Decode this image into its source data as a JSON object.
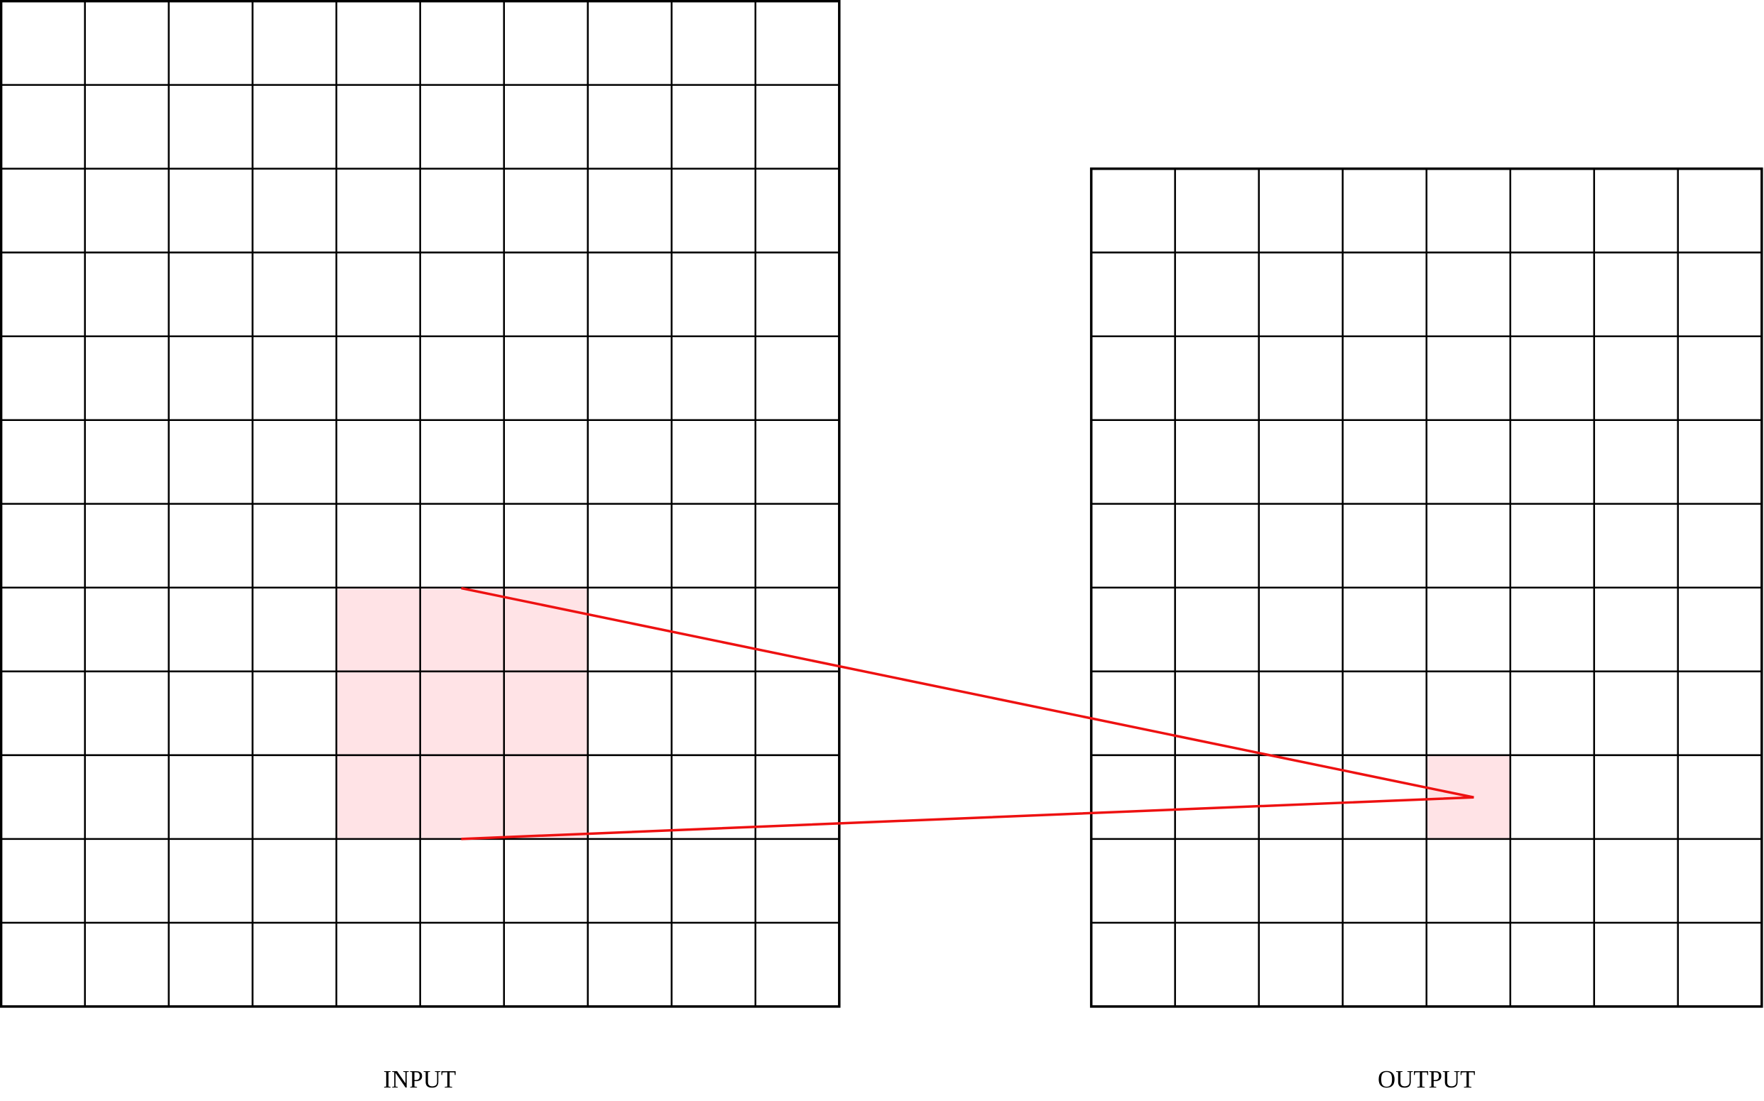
{
  "labels": {
    "input": "INPUT",
    "output": "OUTPUT"
  }
}
